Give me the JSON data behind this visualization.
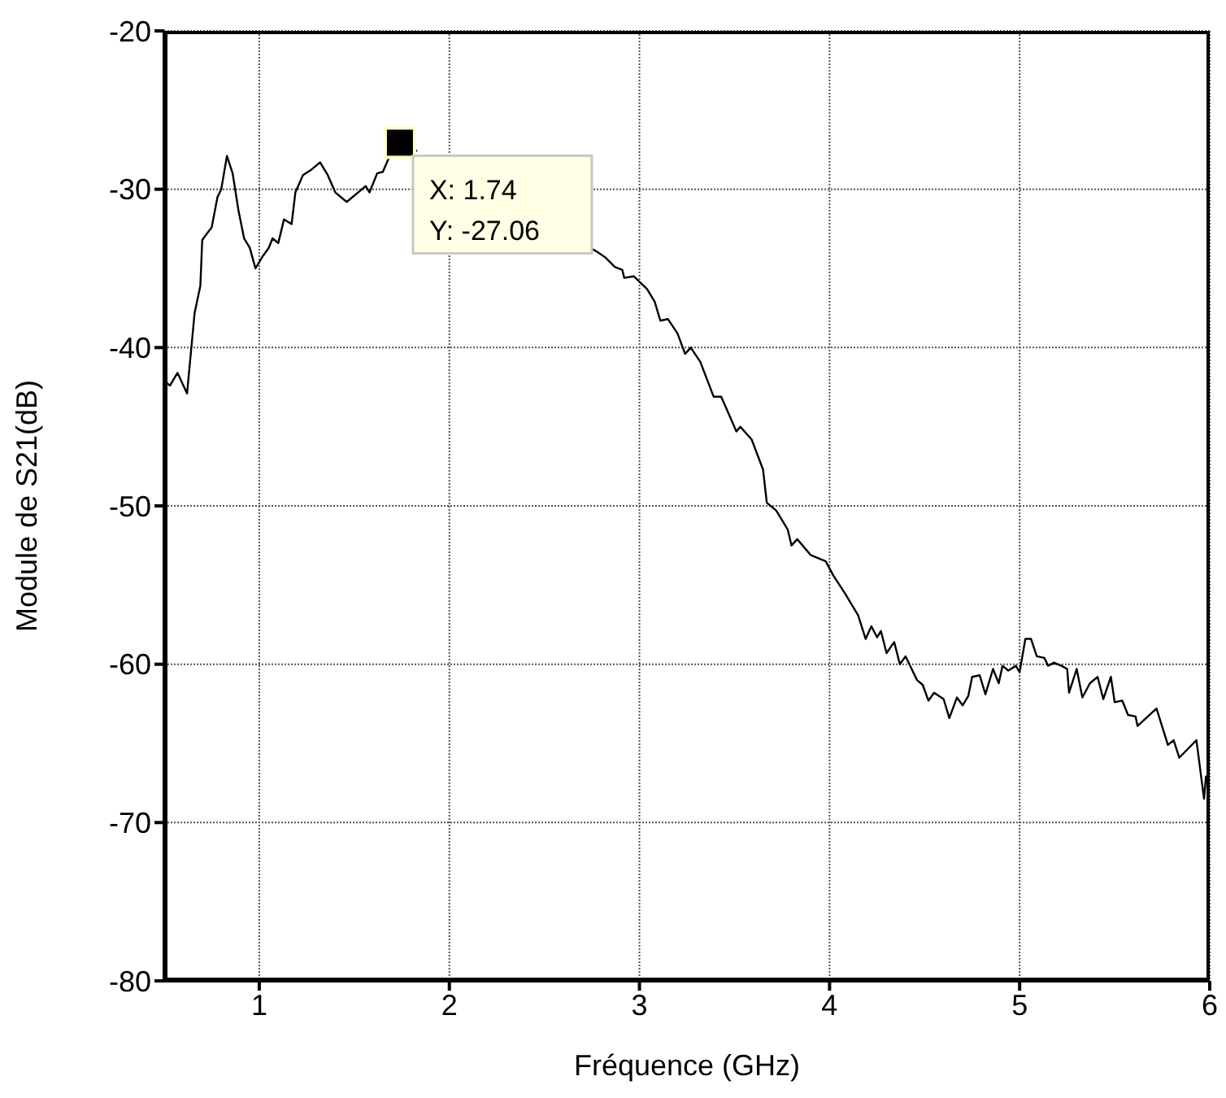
{
  "chart_data": {
    "type": "line",
    "xlabel": "Fréquence  (GHz)",
    "ylabel": "Module de S21(dB)",
    "xlim": [
      0.5,
      6
    ],
    "xticks": [
      1,
      2,
      3,
      4,
      5,
      6
    ],
    "ylim": [
      -80,
      -20
    ],
    "yticks": [
      -80,
      -70,
      -60,
      -50,
      -40,
      -30,
      -20
    ],
    "grid": true,
    "marker": "none",
    "line_style": "solid",
    "annotations": [
      {
        "text": "X: 1.74\nY: -27.06",
        "x": 1.74,
        "y": -27.06
      }
    ],
    "series": [
      {
        "color": "#000000",
        "x": [
          0.51,
          0.53,
          0.57,
          0.62,
          0.66,
          0.69,
          0.7,
          0.75,
          0.78,
          0.8,
          0.83,
          0.86,
          0.89,
          0.92,
          0.95,
          0.98,
          1.02,
          1.05,
          1.07,
          1.1,
          1.13,
          1.17,
          1.19,
          1.23,
          1.27,
          1.32,
          1.36,
          1.4,
          1.46,
          1.52,
          1.56,
          1.58,
          1.62,
          1.65,
          1.69,
          1.74,
          1.83,
          2.3,
          2.74,
          2.77,
          2.82,
          2.87,
          2.91,
          2.92,
          2.97,
          3.04,
          3.08,
          3.11,
          3.15,
          3.2,
          3.24,
          3.27,
          3.32,
          3.39,
          3.43,
          3.51,
          3.53,
          3.59,
          3.65,
          3.67,
          3.72,
          3.78,
          3.8,
          3.83,
          3.9,
          3.98,
          4.02,
          4.08,
          4.15,
          4.19,
          4.22,
          4.25,
          4.27,
          4.3,
          4.34,
          4.37,
          4.4,
          4.46,
          4.49,
          4.52,
          4.55,
          4.6,
          4.63,
          4.67,
          4.7,
          4.73,
          4.75,
          4.79,
          4.82,
          4.86,
          4.89,
          4.91,
          4.94,
          4.98,
          5.0,
          5.03,
          5.06,
          5.09,
          5.13,
          5.15,
          5.18,
          5.22,
          5.25,
          5.26,
          5.3,
          5.33,
          5.37,
          5.41,
          5.44,
          5.48,
          5.5,
          5.54,
          5.57,
          5.61,
          5.62,
          5.72,
          5.78,
          5.81,
          5.84,
          5.93,
          5.97,
          5.98,
          6.0
        ],
        "values": [
          -42.2,
          -42.4,
          -41.6,
          -42.9,
          -37.8,
          -36.1,
          -33.2,
          -32.4,
          -30.5,
          -30.0,
          -27.9,
          -29.0,
          -31.3,
          -33.1,
          -33.7,
          -35.0,
          -34.2,
          -33.7,
          -33.1,
          -33.4,
          -31.9,
          -32.2,
          -30.2,
          -29.1,
          -28.8,
          -28.3,
          -29.1,
          -30.2,
          -30.8,
          -30.2,
          -29.8,
          -30.2,
          -29.0,
          -28.9,
          -27.8,
          -27.06,
          -27.6,
          null,
          -33.7,
          -33.9,
          -34.3,
          -34.9,
          -35.1,
          -35.6,
          -35.5,
          -36.3,
          -37.1,
          -38.3,
          -38.2,
          -39.1,
          -40.4,
          -40.0,
          -40.9,
          -43.1,
          -43.1,
          -45.3,
          -45.0,
          -45.8,
          -47.7,
          -49.8,
          -50.3,
          -51.5,
          -52.5,
          -52.1,
          -53.1,
          -53.5,
          -54.4,
          -55.5,
          -56.9,
          -58.4,
          -57.6,
          -58.3,
          -57.9,
          -59.3,
          -58.6,
          -60.0,
          -59.5,
          -61.0,
          -61.3,
          -62.3,
          -61.8,
          -62.2,
          -63.4,
          -62.1,
          -62.6,
          -62.0,
          -60.8,
          -60.7,
          -61.9,
          -60.3,
          -61.2,
          -60.1,
          -60.4,
          -60.1,
          -60.5,
          -58.4,
          -58.4,
          -59.5,
          -59.6,
          -60.1,
          -59.9,
          -60.1,
          -60.3,
          -61.8,
          -60.3,
          -62.1,
          -61.2,
          -60.8,
          -62.2,
          -60.8,
          -62.4,
          -62.3,
          -63.2,
          -63.3,
          -63.9,
          -62.8,
          -65.1,
          -64.8,
          -65.9,
          -64.8,
          -68.5,
          -67.1,
          -67.0
        ]
      }
    ]
  }
}
